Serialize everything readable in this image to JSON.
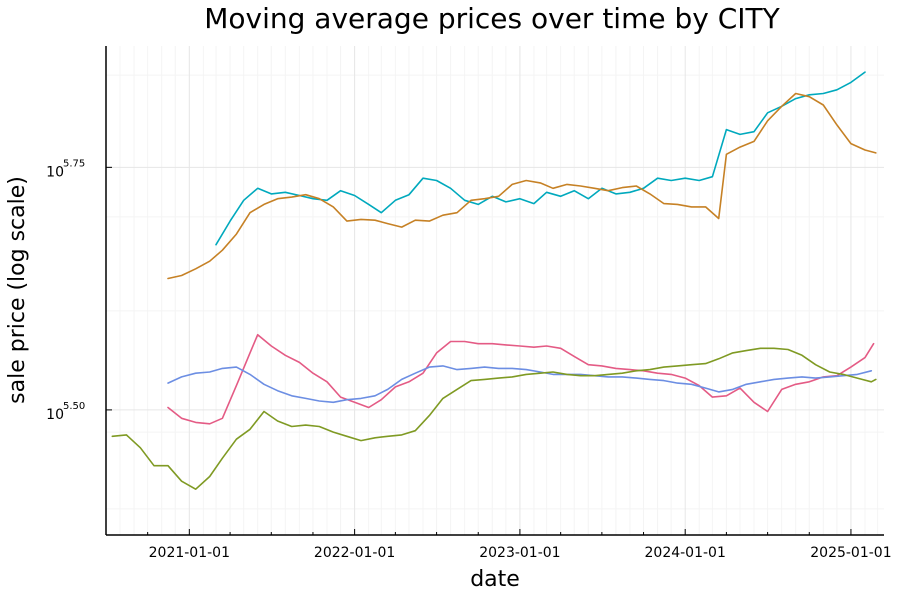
{
  "chart_data": {
    "type": "line",
    "title": "Moving average prices over time by CITY",
    "xlabel": "date",
    "ylabel": "sale price (log scale)",
    "x_ticks": [
      "2021-01-01",
      "2022-01-01",
      "2023-01-01",
      "2024-01-01",
      "2025-01-01"
    ],
    "y_scale": "log10",
    "y_ticks": [
      {
        "base": "10",
        "exponent": "5.50",
        "value": 316228
      },
      {
        "base": "10",
        "exponent": "5.75",
        "value": 562341
      }
    ],
    "xlim": [
      "2020-07-01",
      "2025-03-15"
    ],
    "ylim": [
      235000,
      750000
    ],
    "grid": true,
    "legend": "none",
    "series": [
      {
        "color": "#00a9bd",
        "points": [
          [
            "2021-03-01",
            468000
          ],
          [
            "2021-04-01",
            495000
          ],
          [
            "2021-05-01",
            520000
          ],
          [
            "2021-06-01",
            535000
          ],
          [
            "2021-07-01",
            528000
          ],
          [
            "2021-08-01",
            530000
          ],
          [
            "2021-09-01",
            526000
          ],
          [
            "2021-10-01",
            522000
          ],
          [
            "2021-11-01",
            520000
          ],
          [
            "2021-12-01",
            532000
          ],
          [
            "2022-01-01",
            526000
          ],
          [
            "2022-02-01",
            515000
          ],
          [
            "2022-03-01",
            505000
          ],
          [
            "2022-04-01",
            520000
          ],
          [
            "2022-05-01",
            527000
          ],
          [
            "2022-06-01",
            548000
          ],
          [
            "2022-07-01",
            545000
          ],
          [
            "2022-08-01",
            535000
          ],
          [
            "2022-09-01",
            520000
          ],
          [
            "2022-10-01",
            515000
          ],
          [
            "2022-11-01",
            525000
          ],
          [
            "2022-12-01",
            518000
          ],
          [
            "2023-01-01",
            522000
          ],
          [
            "2023-02-01",
            516000
          ],
          [
            "2023-03-01",
            530000
          ],
          [
            "2023-04-01",
            525000
          ],
          [
            "2023-05-01",
            532000
          ],
          [
            "2023-06-01",
            522000
          ],
          [
            "2023-07-01",
            535000
          ],
          [
            "2023-08-01",
            528000
          ],
          [
            "2023-09-01",
            530000
          ],
          [
            "2023-10-01",
            535000
          ],
          [
            "2023-11-01",
            548000
          ],
          [
            "2023-12-01",
            545000
          ],
          [
            "2024-01-01",
            548000
          ],
          [
            "2024-02-01",
            545000
          ],
          [
            "2024-03-01",
            550000
          ],
          [
            "2024-04-01",
            615000
          ],
          [
            "2024-05-01",
            608000
          ],
          [
            "2024-06-01",
            612000
          ],
          [
            "2024-07-01",
            640000
          ],
          [
            "2024-08-01",
            650000
          ],
          [
            "2024-09-01",
            662000
          ],
          [
            "2024-10-01",
            668000
          ],
          [
            "2024-11-01",
            670000
          ],
          [
            "2024-12-01",
            676000
          ],
          [
            "2025-01-01",
            688000
          ],
          [
            "2025-02-01",
            705000
          ]
        ]
      },
      {
        "color": "#c68125",
        "points": [
          [
            "2020-11-15",
            432000
          ],
          [
            "2020-12-15",
            435000
          ],
          [
            "2021-01-15",
            442000
          ],
          [
            "2021-02-15",
            450000
          ],
          [
            "2021-03-15",
            462000
          ],
          [
            "2021-04-15",
            480000
          ],
          [
            "2021-05-15",
            505000
          ],
          [
            "2021-06-15",
            515000
          ],
          [
            "2021-07-15",
            522000
          ],
          [
            "2021-08-15",
            524000
          ],
          [
            "2021-09-15",
            527000
          ],
          [
            "2021-10-15",
            522000
          ],
          [
            "2021-11-15",
            512000
          ],
          [
            "2021-12-15",
            495000
          ],
          [
            "2022-01-15",
            497000
          ],
          [
            "2022-02-15",
            496000
          ],
          [
            "2022-03-15",
            492000
          ],
          [
            "2022-04-15",
            488000
          ],
          [
            "2022-05-15",
            496000
          ],
          [
            "2022-06-15",
            495000
          ],
          [
            "2022-07-15",
            502000
          ],
          [
            "2022-08-15",
            505000
          ],
          [
            "2022-09-15",
            520000
          ],
          [
            "2022-10-15",
            522000
          ],
          [
            "2022-11-15",
            525000
          ],
          [
            "2022-12-15",
            540000
          ],
          [
            "2023-01-15",
            545000
          ],
          [
            "2023-02-15",
            542000
          ],
          [
            "2023-03-15",
            535000
          ],
          [
            "2023-04-15",
            540000
          ],
          [
            "2023-05-15",
            538000
          ],
          [
            "2023-06-15",
            535000
          ],
          [
            "2023-07-15",
            532000
          ],
          [
            "2023-08-15",
            536000
          ],
          [
            "2023-09-15",
            538000
          ],
          [
            "2023-10-15",
            528000
          ],
          [
            "2023-11-15",
            516000
          ],
          [
            "2023-12-15",
            515000
          ],
          [
            "2024-01-15",
            512000
          ],
          [
            "2024-02-15",
            512000
          ],
          [
            "2024-03-15",
            498000
          ],
          [
            "2024-04-01",
            580000
          ],
          [
            "2024-05-01",
            590000
          ],
          [
            "2024-06-01",
            598000
          ],
          [
            "2024-07-01",
            628000
          ],
          [
            "2024-08-01",
            650000
          ],
          [
            "2024-09-01",
            670000
          ],
          [
            "2024-10-01",
            665000
          ],
          [
            "2024-11-01",
            652000
          ],
          [
            "2024-12-01",
            622000
          ],
          [
            "2025-01-01",
            595000
          ],
          [
            "2025-02-01",
            586000
          ],
          [
            "2025-02-25",
            582000
          ]
        ]
      },
      {
        "color": "#e45b85",
        "points": [
          [
            "2020-11-15",
            318000
          ],
          [
            "2020-12-15",
            310000
          ],
          [
            "2021-01-15",
            307000
          ],
          [
            "2021-02-15",
            306000
          ],
          [
            "2021-03-15",
            310000
          ],
          [
            "2021-04-15",
            335000
          ],
          [
            "2021-05-15",
            362000
          ],
          [
            "2021-06-01",
            378000
          ],
          [
            "2021-07-01",
            368000
          ],
          [
            "2021-08-01",
            360000
          ],
          [
            "2021-09-01",
            354000
          ],
          [
            "2021-10-01",
            345000
          ],
          [
            "2021-11-01",
            338000
          ],
          [
            "2021-12-01",
            326000
          ],
          [
            "2022-01-01",
            322000
          ],
          [
            "2022-02-01",
            318000
          ],
          [
            "2022-03-01",
            324000
          ],
          [
            "2022-04-01",
            334000
          ],
          [
            "2022-05-01",
            338000
          ],
          [
            "2022-06-01",
            345000
          ],
          [
            "2022-07-01",
            362000
          ],
          [
            "2022-08-01",
            372000
          ],
          [
            "2022-09-01",
            372000
          ],
          [
            "2022-10-01",
            370000
          ],
          [
            "2022-11-01",
            370000
          ],
          [
            "2022-12-01",
            369000
          ],
          [
            "2023-01-01",
            368000
          ],
          [
            "2023-02-01",
            367000
          ],
          [
            "2023-03-01",
            368000
          ],
          [
            "2023-04-01",
            366000
          ],
          [
            "2023-05-01",
            359000
          ],
          [
            "2023-06-01",
            352000
          ],
          [
            "2023-07-01",
            351000
          ],
          [
            "2023-08-01",
            349000
          ],
          [
            "2023-09-01",
            348000
          ],
          [
            "2023-10-01",
            347000
          ],
          [
            "2023-11-01",
            345000
          ],
          [
            "2023-12-01",
            344000
          ],
          [
            "2024-01-01",
            341000
          ],
          [
            "2024-02-01",
            335000
          ],
          [
            "2024-03-01",
            326000
          ],
          [
            "2024-04-01",
            327000
          ],
          [
            "2024-05-01",
            333000
          ],
          [
            "2024-06-01",
            322000
          ],
          [
            "2024-07-01",
            315000
          ],
          [
            "2024-08-01",
            332000
          ],
          [
            "2024-09-01",
            336000
          ],
          [
            "2024-10-01",
            338000
          ],
          [
            "2024-11-01",
            342000
          ],
          [
            "2024-12-01",
            343000
          ],
          [
            "2025-01-01",
            350000
          ],
          [
            "2025-02-01",
            358000
          ],
          [
            "2025-02-20",
            370000
          ]
        ]
      },
      {
        "color": "#6c8ee3",
        "points": [
          [
            "2020-11-15",
            337000
          ],
          [
            "2020-12-15",
            342000
          ],
          [
            "2021-01-15",
            345000
          ],
          [
            "2021-02-15",
            346000
          ],
          [
            "2021-03-15",
            349000
          ],
          [
            "2021-04-15",
            350000
          ],
          [
            "2021-05-15",
            344000
          ],
          [
            "2021-06-15",
            336000
          ],
          [
            "2021-07-15",
            331000
          ],
          [
            "2021-08-15",
            327000
          ],
          [
            "2021-09-15",
            325000
          ],
          [
            "2021-10-15",
            323000
          ],
          [
            "2021-11-15",
            322000
          ],
          [
            "2021-12-15",
            324000
          ],
          [
            "2022-01-15",
            325000
          ],
          [
            "2022-02-15",
            327000
          ],
          [
            "2022-03-15",
            332000
          ],
          [
            "2022-04-15",
            340000
          ],
          [
            "2022-05-15",
            345000
          ],
          [
            "2022-06-15",
            350000
          ],
          [
            "2022-07-15",
            351000
          ],
          [
            "2022-08-15",
            348000
          ],
          [
            "2022-09-15",
            349000
          ],
          [
            "2022-10-15",
            350000
          ],
          [
            "2022-11-15",
            349000
          ],
          [
            "2022-12-15",
            349000
          ],
          [
            "2023-01-15",
            348000
          ],
          [
            "2023-02-15",
            346000
          ],
          [
            "2023-03-15",
            344000
          ],
          [
            "2023-04-15",
            344000
          ],
          [
            "2023-05-15",
            344000
          ],
          [
            "2023-06-15",
            343000
          ],
          [
            "2023-07-15",
            342000
          ],
          [
            "2023-08-15",
            342000
          ],
          [
            "2023-09-15",
            341000
          ],
          [
            "2023-10-15",
            340000
          ],
          [
            "2023-11-15",
            339000
          ],
          [
            "2023-12-15",
            337000
          ],
          [
            "2024-01-15",
            336000
          ],
          [
            "2024-02-15",
            333000
          ],
          [
            "2024-03-15",
            330000
          ],
          [
            "2024-04-15",
            332000
          ],
          [
            "2024-05-15",
            336000
          ],
          [
            "2024-06-15",
            338000
          ],
          [
            "2024-07-15",
            340000
          ],
          [
            "2024-08-15",
            341000
          ],
          [
            "2024-09-15",
            342000
          ],
          [
            "2024-10-15",
            341000
          ],
          [
            "2024-11-15",
            342000
          ],
          [
            "2024-12-15",
            343000
          ],
          [
            "2025-01-15",
            344000
          ],
          [
            "2025-02-15",
            347000
          ]
        ]
      },
      {
        "color": "#7f9a23",
        "points": [
          [
            "2020-07-15",
            297000
          ],
          [
            "2020-08-15",
            298000
          ],
          [
            "2020-09-15",
            289000
          ],
          [
            "2020-10-15",
            277000
          ],
          [
            "2020-11-15",
            277000
          ],
          [
            "2020-12-15",
            267000
          ],
          [
            "2021-01-15",
            262000
          ],
          [
            "2021-02-15",
            270000
          ],
          [
            "2021-03-15",
            282000
          ],
          [
            "2021-04-15",
            295000
          ],
          [
            "2021-05-15",
            302000
          ],
          [
            "2021-06-15",
            315000
          ],
          [
            "2021-07-15",
            308000
          ],
          [
            "2021-08-15",
            304000
          ],
          [
            "2021-09-15",
            305000
          ],
          [
            "2021-10-15",
            304000
          ],
          [
            "2021-11-15",
            300000
          ],
          [
            "2021-12-15",
            297000
          ],
          [
            "2022-01-15",
            294000
          ],
          [
            "2022-02-15",
            296000
          ],
          [
            "2022-03-15",
            297000
          ],
          [
            "2022-04-15",
            298000
          ],
          [
            "2022-05-15",
            301000
          ],
          [
            "2022-06-15",
            312000
          ],
          [
            "2022-07-15",
            325000
          ],
          [
            "2022-08-15",
            332000
          ],
          [
            "2022-09-15",
            339000
          ],
          [
            "2022-10-15",
            340000
          ],
          [
            "2022-11-15",
            341000
          ],
          [
            "2022-12-15",
            342000
          ],
          [
            "2023-01-15",
            344000
          ],
          [
            "2023-02-15",
            345000
          ],
          [
            "2023-03-15",
            346000
          ],
          [
            "2023-04-15",
            344000
          ],
          [
            "2023-05-15",
            343000
          ],
          [
            "2023-06-15",
            343000
          ],
          [
            "2023-07-15",
            344000
          ],
          [
            "2023-08-15",
            345000
          ],
          [
            "2023-09-15",
            347000
          ],
          [
            "2023-10-15",
            348000
          ],
          [
            "2023-11-15",
            350000
          ],
          [
            "2023-12-15",
            351000
          ],
          [
            "2024-01-15",
            352000
          ],
          [
            "2024-02-15",
            353000
          ],
          [
            "2024-03-15",
            357000
          ],
          [
            "2024-04-15",
            362000
          ],
          [
            "2024-05-15",
            364000
          ],
          [
            "2024-06-15",
            366000
          ],
          [
            "2024-07-15",
            366000
          ],
          [
            "2024-08-15",
            365000
          ],
          [
            "2024-09-15",
            360000
          ],
          [
            "2024-10-15",
            352000
          ],
          [
            "2024-11-15",
            346000
          ],
          [
            "2024-12-15",
            344000
          ],
          [
            "2025-01-15",
            341000
          ],
          [
            "2025-02-15",
            338000
          ],
          [
            "2025-02-25",
            340000
          ]
        ]
      }
    ]
  }
}
